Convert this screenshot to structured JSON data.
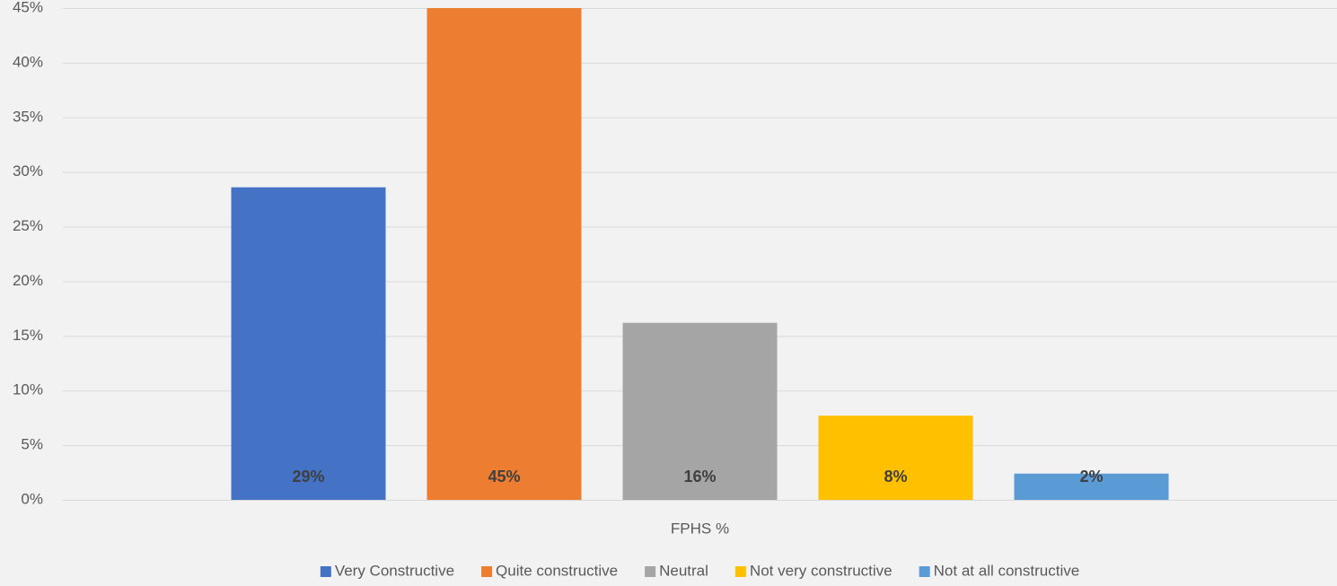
{
  "chart_data": {
    "type": "bar",
    "categories": [
      "FPHS %"
    ],
    "series": [
      {
        "name": "Very Constructive",
        "color": "#4472c4",
        "values": [
          28.6
        ],
        "value_labels": [
          "29%"
        ]
      },
      {
        "name": "Quite constructive",
        "color": "#ed7d31",
        "values": [
          45
        ],
        "value_labels": [
          "45%"
        ]
      },
      {
        "name": "Neutral",
        "color": "#a5a5a5",
        "values": [
          16.2
        ],
        "value_labels": [
          "16%"
        ]
      },
      {
        "name": "Not very constructive",
        "color": "#ffc000",
        "values": [
          7.7
        ],
        "value_labels": [
          "8%"
        ]
      },
      {
        "name": "Not at all constructive",
        "color": "#5b9bd5",
        "values": [
          2.4
        ],
        "value_labels": [
          "2%"
        ]
      }
    ],
    "ylim": [
      0,
      45
    ],
    "yticks": [
      {
        "value": 0,
        "label": "0%"
      },
      {
        "value": 5,
        "label": "5%"
      },
      {
        "value": 10,
        "label": "10%"
      },
      {
        "value": 15,
        "label": "15%"
      },
      {
        "value": 20,
        "label": "20%"
      },
      {
        "value": 25,
        "label": "25%"
      },
      {
        "value": 30,
        "label": "30%"
      },
      {
        "value": 35,
        "label": "35%"
      },
      {
        "value": 40,
        "label": "40%"
      },
      {
        "value": 45,
        "label": "45%"
      }
    ],
    "grid": true,
    "legend": "bottom"
  }
}
